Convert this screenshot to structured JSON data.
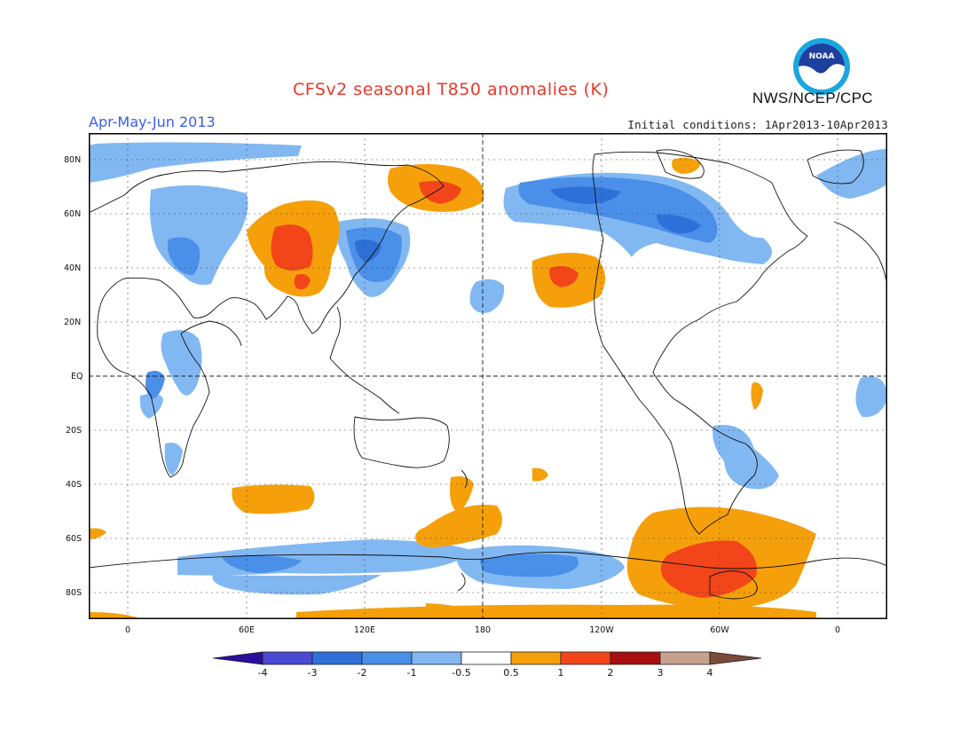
{
  "title": "CFSv2 seasonal T850 anomalies (K)",
  "organization": "NWS/NCEP/CPC",
  "logo_text": "NOAA",
  "season": "Apr-May-Jun 2013",
  "initial_conditions": "Initial conditions: 1Apr2013-10Apr2013",
  "latitude_labels": [
    "80N",
    "60N",
    "40N",
    "20N",
    "EQ",
    "20S",
    "40S",
    "60S",
    "80S"
  ],
  "longitude_labels": [
    "0",
    "60E",
    "120E",
    "180",
    "120W",
    "60W",
    "0"
  ],
  "colorbar": {
    "labels": [
      "-4",
      "-3",
      "-2",
      "-1",
      "-0.5",
      "0.5",
      "1",
      "2",
      "3",
      "4"
    ],
    "colors": [
      "#2a0e9c",
      "#4a4ad4",
      "#2f6fd8",
      "#4a8fe8",
      "#82b8f2",
      "#ffffff",
      "#f5a00a",
      "#f2461a",
      "#a50f0f",
      "#c8a090",
      "#7a4a3a"
    ]
  },
  "colors": {
    "title": "#e8392a",
    "season": "#3a5de8",
    "cool_light": "#82b8f2",
    "cool": "#4a8fe8",
    "cool_dark": "#2f6fd8",
    "warm": "#f5a00a",
    "warm_strong": "#f2461a"
  }
}
